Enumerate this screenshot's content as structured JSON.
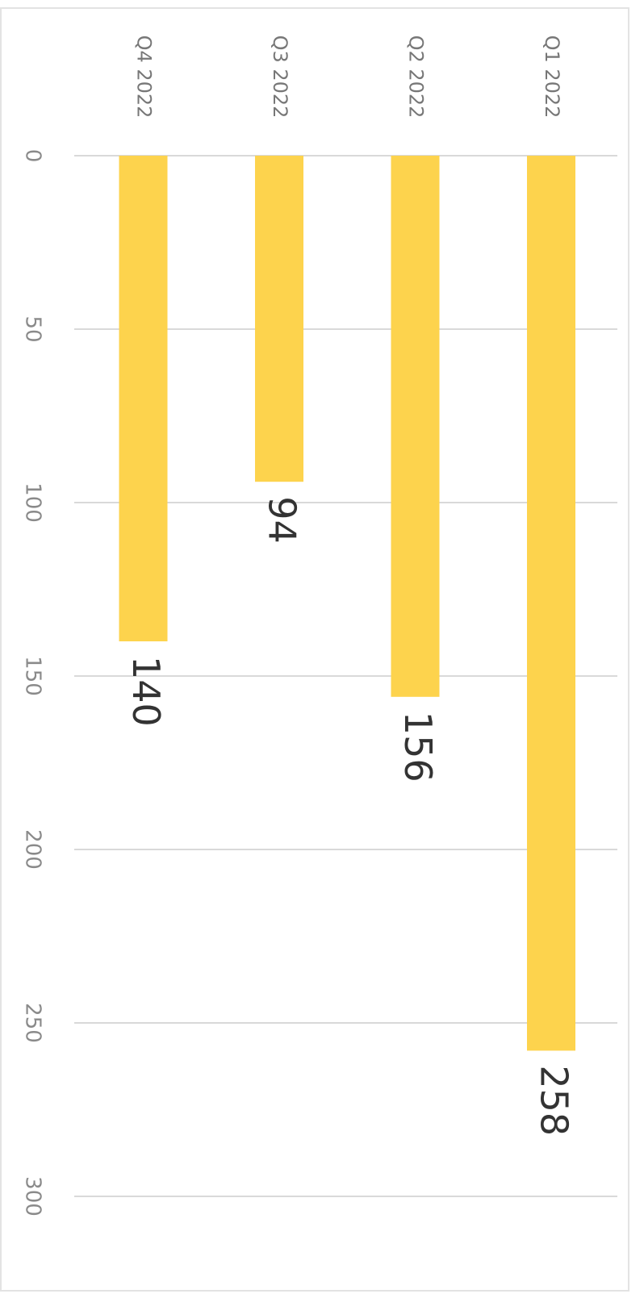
{
  "chart_data": {
    "type": "bar",
    "categories": [
      "Q1 2022",
      "Q2 2022",
      "Q3 2022",
      "Q4 2022"
    ],
    "values": [
      258,
      156,
      94,
      140
    ],
    "color": "#fdd34d",
    "ylim": [
      0,
      300
    ],
    "yticks": [
      0,
      50,
      100,
      150,
      200,
      250,
      300
    ],
    "grid": true
  }
}
